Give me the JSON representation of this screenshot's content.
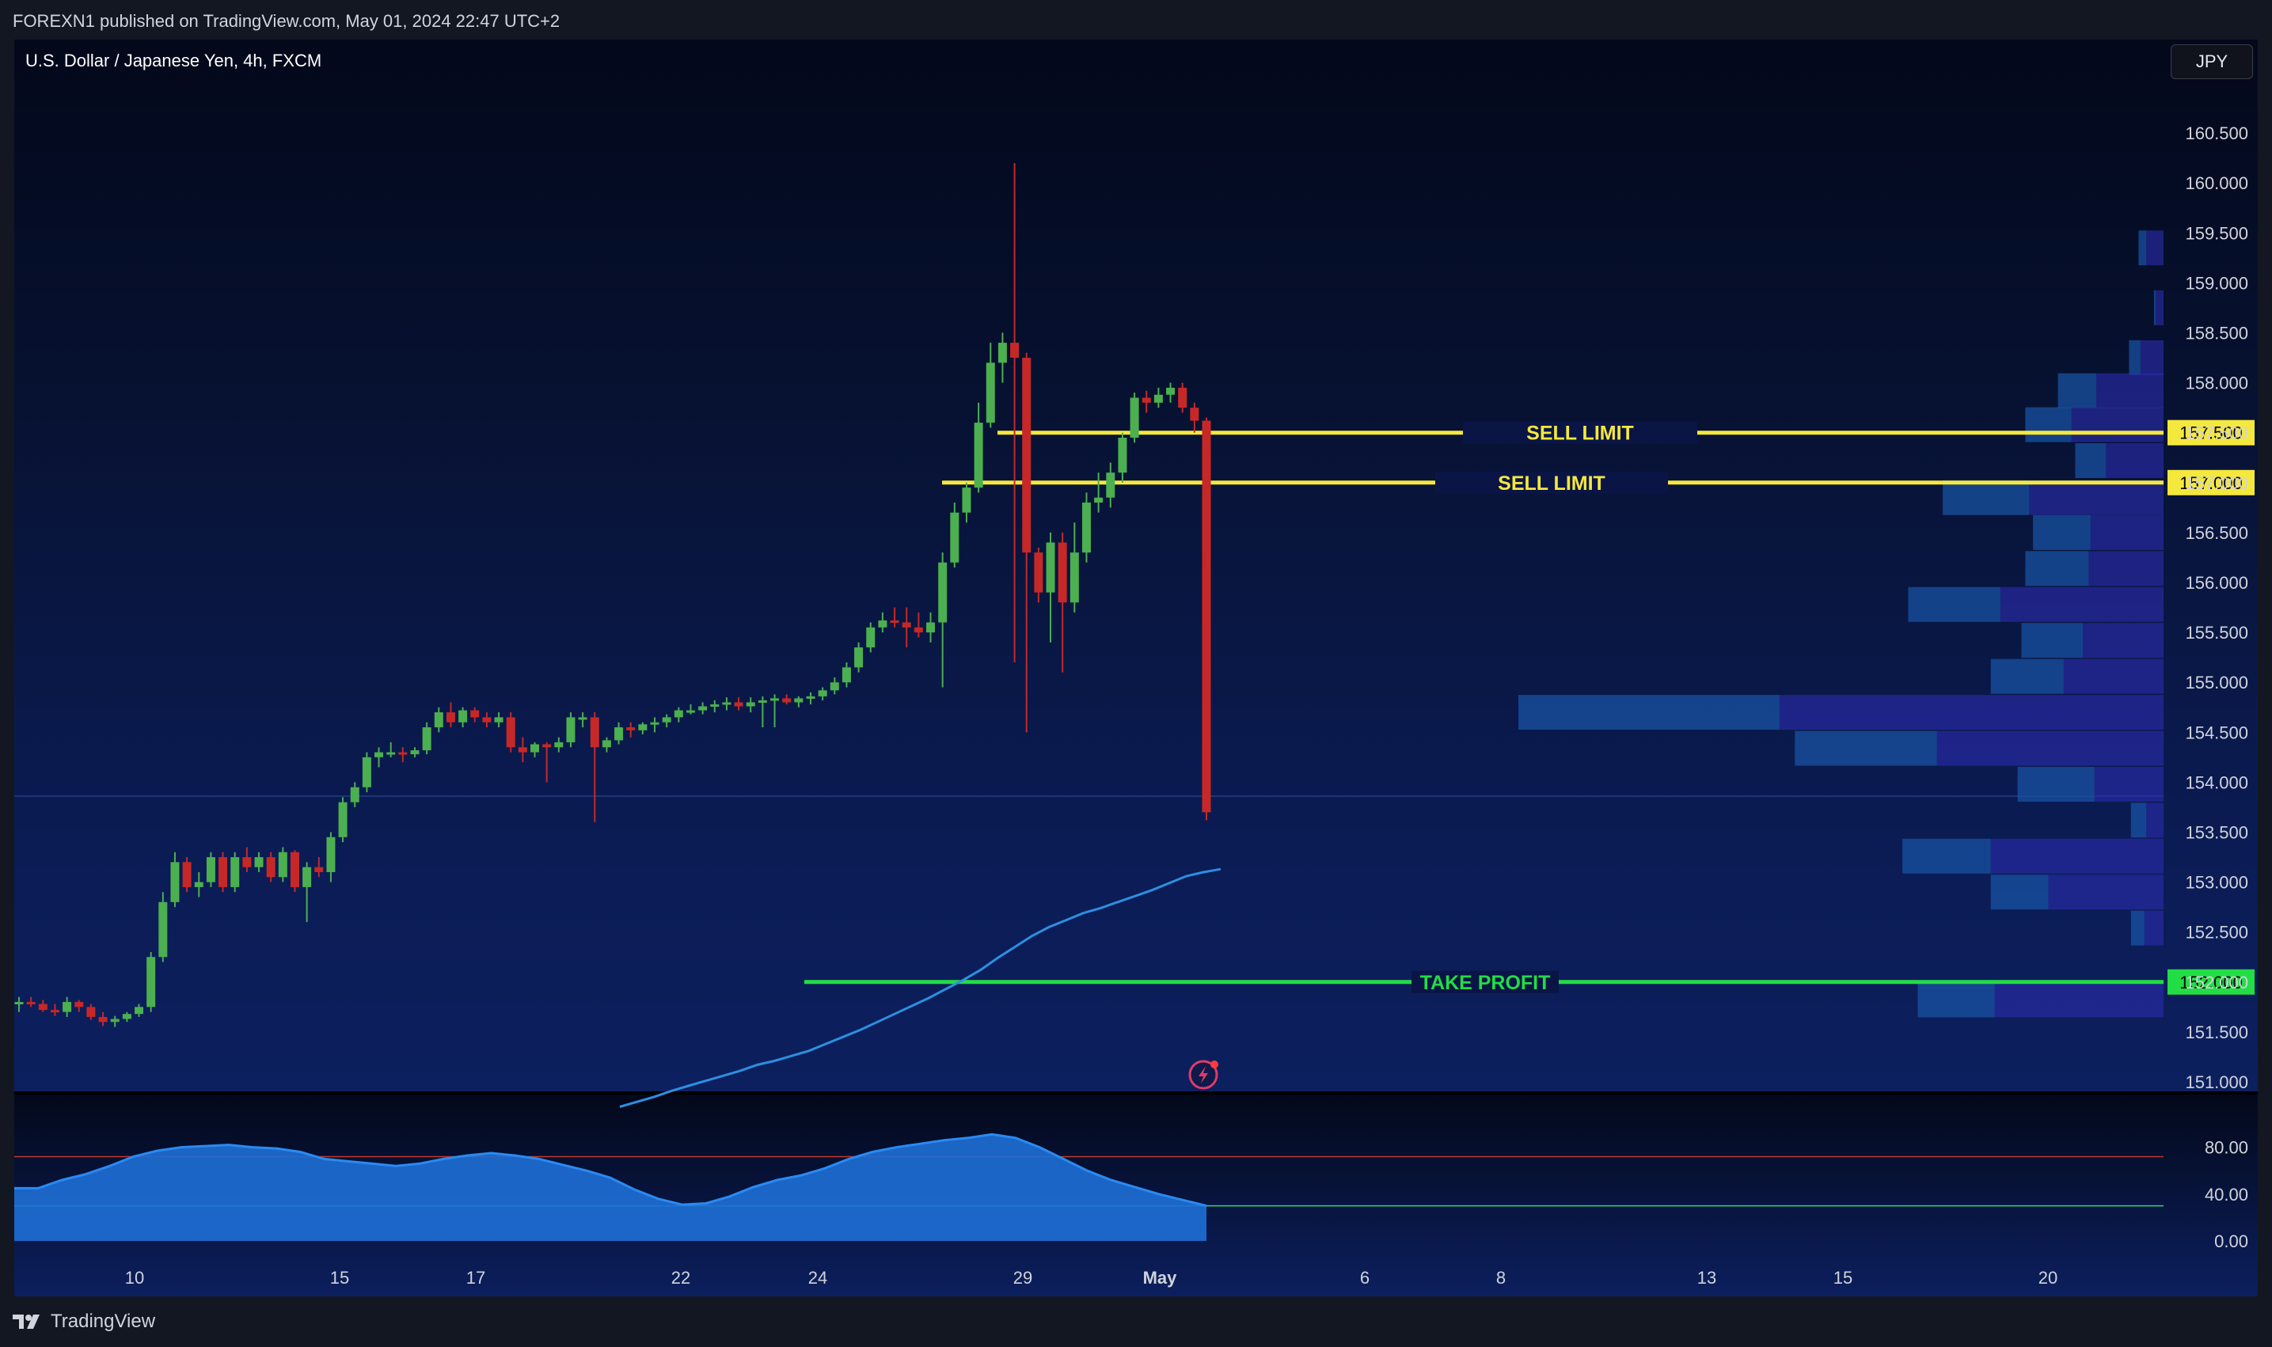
{
  "header": {
    "published": "FOREXN1 published on TradingView.com, May 01, 2024 22:47 UTC+2"
  },
  "chart_header": {
    "title": "U.S. Dollar / Japanese Yen, 4h, FXCM",
    "currency": "JPY"
  },
  "footer": {
    "brand": "TradingView"
  },
  "colors": {
    "up": "#4caf50",
    "down": "#c62828",
    "sell_line": "#f5e83c",
    "tp_line": "#22dd44",
    "ma": "#2d8fe0",
    "indicator_fill": "#1e6fd6"
  },
  "chart_data": [
    {
      "type": "candlestick",
      "title": "U.S. Dollar / Japanese Yen, 4h, FXCM",
      "price_axis": [
        "160.500",
        "160.000",
        "159.500",
        "159.000",
        "158.500",
        "158.000",
        "157.500",
        "157.000",
        "156.500",
        "156.000",
        "155.500",
        "155.000",
        "154.500",
        "154.000",
        "153.500",
        "153.000",
        "152.500",
        "152.000",
        "151.500",
        "151.000"
      ],
      "time_axis": [
        "10",
        "15",
        "17",
        "22",
        "24",
        "29",
        "May",
        "6",
        "8",
        "13",
        "15",
        "20"
      ],
      "ylim": [
        150.75,
        161.0
      ],
      "levels": [
        {
          "label": "SELL LIMIT",
          "price": 157.5,
          "price_label": "157.500",
          "color": "#f5e83c"
        },
        {
          "label": "SELL LIMIT",
          "price": 157.0,
          "price_label": "157.000",
          "color": "#f5e83c"
        },
        {
          "label": "TAKE PROFIT",
          "price": 152.0,
          "price_label": "152.000",
          "color": "#22dd44"
        }
      ],
      "candles": [
        [
          151.8,
          151.85,
          151.7,
          151.8
        ],
        [
          151.8,
          151.85,
          151.75,
          151.78
        ],
        [
          151.78,
          151.82,
          151.7,
          151.72
        ],
        [
          151.72,
          151.78,
          151.66,
          151.7
        ],
        [
          151.7,
          151.85,
          151.65,
          151.8
        ],
        [
          151.8,
          151.82,
          151.7,
          151.75
        ],
        [
          151.75,
          151.78,
          151.62,
          151.65
        ],
        [
          151.65,
          151.7,
          151.56,
          151.6
        ],
        [
          151.6,
          151.66,
          151.55,
          151.63
        ],
        [
          151.63,
          151.7,
          151.6,
          151.68
        ],
        [
          151.68,
          151.78,
          151.65,
          151.75
        ],
        [
          151.75,
          152.3,
          151.7,
          152.25
        ],
        [
          152.25,
          152.9,
          152.2,
          152.8
        ],
        [
          152.8,
          153.3,
          152.75,
          153.2
        ],
        [
          153.2,
          153.25,
          152.9,
          152.95
        ],
        [
          152.95,
          153.1,
          152.85,
          153.0
        ],
        [
          153.0,
          153.3,
          152.95,
          153.25
        ],
        [
          153.25,
          153.3,
          152.9,
          152.95
        ],
        [
          152.95,
          153.3,
          152.9,
          153.25
        ],
        [
          153.25,
          153.35,
          153.1,
          153.15
        ],
        [
          153.15,
          153.3,
          153.1,
          153.25
        ],
        [
          153.25,
          153.3,
          153.0,
          153.05
        ],
        [
          153.05,
          153.35,
          153.0,
          153.3
        ],
        [
          153.3,
          153.32,
          152.9,
          152.95
        ],
        [
          152.95,
          153.2,
          152.6,
          153.15
        ],
        [
          153.15,
          153.25,
          153.05,
          153.1
        ],
        [
          153.1,
          153.5,
          153.0,
          153.45
        ],
        [
          153.45,
          153.85,
          153.4,
          153.8
        ],
        [
          153.8,
          154.0,
          153.75,
          153.95
        ],
        [
          153.95,
          154.3,
          153.9,
          154.25
        ],
        [
          154.25,
          154.35,
          154.15,
          154.3
        ],
        [
          154.3,
          154.4,
          154.25,
          154.3
        ],
        [
          154.3,
          154.35,
          154.2,
          154.28
        ],
        [
          154.28,
          154.35,
          154.25,
          154.32
        ],
        [
          154.32,
          154.6,
          154.28,
          154.55
        ],
        [
          154.55,
          154.75,
          154.5,
          154.7
        ],
        [
          154.7,
          154.8,
          154.55,
          154.6
        ],
        [
          154.6,
          154.75,
          154.55,
          154.72
        ],
        [
          154.72,
          154.75,
          154.6,
          154.65
        ],
        [
          154.65,
          154.7,
          154.55,
          154.6
        ],
        [
          154.6,
          154.7,
          154.55,
          154.65
        ],
        [
          154.65,
          154.7,
          154.3,
          154.35
        ],
        [
          154.35,
          154.45,
          154.2,
          154.3
        ],
        [
          154.3,
          154.4,
          154.25,
          154.38
        ],
        [
          154.38,
          154.4,
          154.0,
          154.35
        ],
        [
          154.35,
          154.45,
          154.3,
          154.4
        ],
        [
          154.4,
          154.7,
          154.35,
          154.65
        ],
        [
          154.65,
          154.7,
          154.55,
          154.65
        ],
        [
          154.65,
          154.7,
          153.6,
          154.35
        ],
        [
          154.35,
          154.45,
          154.3,
          154.42
        ],
        [
          154.42,
          154.6,
          154.38,
          154.55
        ],
        [
          154.55,
          154.6,
          154.45,
          154.52
        ],
        [
          154.52,
          154.6,
          154.48,
          154.58
        ],
        [
          154.58,
          154.65,
          154.5,
          154.6
        ],
        [
          154.6,
          154.68,
          154.55,
          154.65
        ],
        [
          154.65,
          154.75,
          154.6,
          154.72
        ],
        [
          154.72,
          154.78,
          154.68,
          154.72
        ],
        [
          154.72,
          154.8,
          154.68,
          154.76
        ],
        [
          154.76,
          154.82,
          154.7,
          154.78
        ],
        [
          154.78,
          154.85,
          154.72,
          154.8
        ],
        [
          154.8,
          154.85,
          154.72,
          154.76
        ],
        [
          154.76,
          154.85,
          154.7,
          154.8
        ],
        [
          154.8,
          154.86,
          154.55,
          154.82
        ],
        [
          154.82,
          154.88,
          154.55,
          154.84
        ],
        [
          154.84,
          154.88,
          154.78,
          154.8
        ],
        [
          154.8,
          154.86,
          154.75,
          154.84
        ],
        [
          154.84,
          154.9,
          154.78,
          154.86
        ],
        [
          154.86,
          154.95,
          154.82,
          154.92
        ],
        [
          154.92,
          155.05,
          154.88,
          155.0
        ],
        [
          155.0,
          155.2,
          154.95,
          155.15
        ],
        [
          155.15,
          155.4,
          155.1,
          155.35
        ],
        [
          155.35,
          155.6,
          155.3,
          155.55
        ],
        [
          155.55,
          155.7,
          155.5,
          155.62
        ],
        [
          155.62,
          155.75,
          155.55,
          155.6
        ],
        [
          155.6,
          155.75,
          155.35,
          155.55
        ],
        [
          155.55,
          155.7,
          155.45,
          155.5
        ],
        [
          155.5,
          155.7,
          155.4,
          155.6
        ],
        [
          155.6,
          156.3,
          154.95,
          156.2
        ],
        [
          156.2,
          156.8,
          156.15,
          156.7
        ],
        [
          156.7,
          157.0,
          156.6,
          156.95
        ],
        [
          156.95,
          157.8,
          156.9,
          157.6
        ],
        [
          157.6,
          158.4,
          157.55,
          158.2
        ],
        [
          158.2,
          158.5,
          158.0,
          158.4
        ],
        [
          158.4,
          160.2,
          155.2,
          158.25
        ],
        [
          158.25,
          158.3,
          154.5,
          156.3
        ],
        [
          156.3,
          156.35,
          155.8,
          155.9
        ],
        [
          155.9,
          156.5,
          155.4,
          156.4
        ],
        [
          156.4,
          156.5,
          155.1,
          155.8
        ],
        [
          155.8,
          156.6,
          155.7,
          156.3
        ],
        [
          156.3,
          156.9,
          156.2,
          156.8
        ],
        [
          156.8,
          157.1,
          156.7,
          156.85
        ],
        [
          156.85,
          157.2,
          156.75,
          157.1
        ],
        [
          157.1,
          157.5,
          157.0,
          157.45
        ],
        [
          157.45,
          157.9,
          157.4,
          157.85
        ],
        [
          157.85,
          157.92,
          157.7,
          157.8
        ],
        [
          157.8,
          157.95,
          157.75,
          157.88
        ],
        [
          157.88,
          158.0,
          157.8,
          157.95
        ],
        [
          157.95,
          158.0,
          157.7,
          157.75
        ],
        [
          157.75,
          157.8,
          157.5,
          157.62
        ],
        [
          157.62,
          157.65,
          153.62,
          153.7
        ]
      ],
      "ma": [
        150.75,
        150.8,
        150.85,
        150.91,
        150.96,
        151.01,
        151.06,
        151.11,
        151.17,
        151.21,
        151.26,
        151.31,
        151.38,
        151.45,
        151.52,
        151.6,
        151.68,
        151.76,
        151.84,
        151.93,
        152.02,
        152.12,
        152.24,
        152.35,
        152.46,
        152.55,
        152.62,
        152.69,
        152.74,
        152.8,
        152.86,
        152.92,
        152.99,
        153.06,
        153.1,
        153.13
      ],
      "volume_profile": [
        {
          "price": 159.35,
          "a": 0.4,
          "b": 0.9
        },
        {
          "price": 158.75,
          "a": 0.1,
          "b": 0.4
        },
        {
          "price": 158.25,
          "a": 0.6,
          "b": 1.2
        },
        {
          "price": 157.92,
          "a": 2.0,
          "b": 3.5
        },
        {
          "price": 157.58,
          "a": 2.4,
          "b": 4.8
        },
        {
          "price": 157.22,
          "a": 1.6,
          "b": 3.0
        },
        {
          "price": 156.85,
          "a": 4.5,
          "b": 7.0
        },
        {
          "price": 156.5,
          "a": 3.0,
          "b": 3.8
        },
        {
          "price": 156.14,
          "a": 3.3,
          "b": 3.9
        },
        {
          "price": 155.78,
          "a": 4.8,
          "b": 8.5
        },
        {
          "price": 155.42,
          "a": 3.2,
          "b": 4.2
        },
        {
          "price": 155.06,
          "a": 3.8,
          "b": 5.2
        },
        {
          "price": 154.7,
          "a": 13.6,
          "b": 20.0
        },
        {
          "price": 154.34,
          "a": 7.4,
          "b": 11.8
        },
        {
          "price": 153.98,
          "a": 4.0,
          "b": 3.6
        },
        {
          "price": 153.62,
          "a": 0.8,
          "b": 0.9
        },
        {
          "price": 153.26,
          "a": 4.6,
          "b": 9.0
        },
        {
          "price": 152.9,
          "a": 3.0,
          "b": 6.0
        },
        {
          "price": 152.54,
          "a": 0.7,
          "b": 1.0
        },
        {
          "price": 151.82,
          "a": 4.0,
          "b": 8.8
        }
      ]
    },
    {
      "type": "area",
      "y_axis": [
        "80.00",
        "40.00",
        "0.00"
      ],
      "ylim": [
        0,
        100
      ],
      "bands": [
        72,
        30
      ],
      "values": [
        45,
        45,
        52,
        57,
        64,
        72,
        77,
        80,
        81,
        82,
        80,
        79,
        76,
        70,
        68,
        66,
        64,
        66,
        70,
        73,
        75,
        73,
        70,
        65,
        60,
        54,
        44,
        36,
        31,
        32,
        38,
        46,
        52,
        56,
        62,
        70,
        76,
        80,
        83,
        86,
        88,
        91,
        88,
        80,
        70,
        60,
        52,
        46,
        40,
        35,
        30
      ]
    }
  ]
}
